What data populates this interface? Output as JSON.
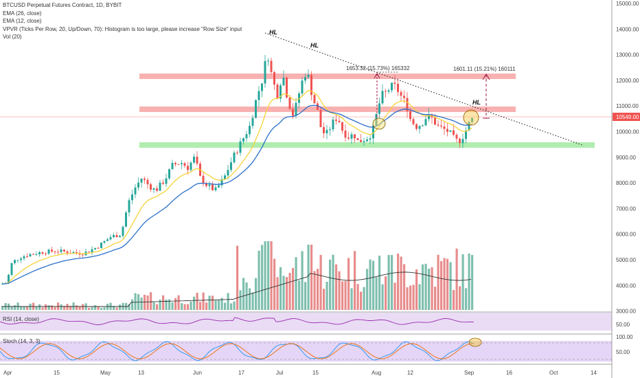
{
  "legend": {
    "title": "BTCUSD Perpetual Futures Contract, 1D, BYBIT",
    "ema26": "EMA (26, close)",
    "ema12": "EMA (12, close)",
    "vpvr": "VPVR (Ticks Per Row, 20, Up/Down, 70): Histogram is too large, please increase \"Row Size\" input",
    "vol": "Vol (20)"
  },
  "rsi_label": "RSI (14, close)",
  "stoch_label": "Stoch (14, 3, 3)",
  "price_label": "10549.00",
  "colors": {
    "up": "#26a69a",
    "down": "#ef5350",
    "ema12": "#f5d33a",
    "ema26": "#2a6fc9",
    "resistance": "#f7a3a3",
    "support": "#a7eba5",
    "stoch_k": "#2196f3",
    "stoch_d": "#ef6c00",
    "rsi": "#9c27b0",
    "last_price": "#ef5350"
  },
  "chart_data": {
    "type": "candlestick",
    "yaxis_ticks": [
      "15000.00",
      "14000.00",
      "13000.00",
      "12000.00",
      "11000.00",
      "10000.00",
      "9000.00",
      "8000.00",
      "7000.00",
      "6000.00",
      "5000.00",
      "4000.00",
      "3000.00"
    ],
    "ylim": [
      3000,
      15000
    ],
    "xaxis_ticks": [
      "Apr",
      "15",
      "May",
      "13",
      "Jun",
      "17",
      "Jul",
      "15",
      "Aug",
      "12",
      "Sep",
      "16",
      "Oct",
      "14"
    ],
    "rsi_ticks": [
      "50.00"
    ],
    "stoch_ticks": [
      "100.00",
      "50.00"
    ],
    "resistance_zones": [
      [
        10700,
        10900
      ],
      [
        12050,
        12250
      ]
    ],
    "support_zones": [
      [
        9350,
        9500
      ]
    ],
    "annotations": {
      "hl_labels": [
        "HL",
        "HL",
        "HL"
      ],
      "move1": "1653.32 (15.73%) 165332",
      "move2": "1601.11 (15.21%) 160111"
    },
    "trendline": {
      "from": {
        "x": "Jun 26",
        "y": 13900
      },
      "to": {
        "x": "Sep 30",
        "y": 9450
      }
    },
    "last_price": 10549
  }
}
